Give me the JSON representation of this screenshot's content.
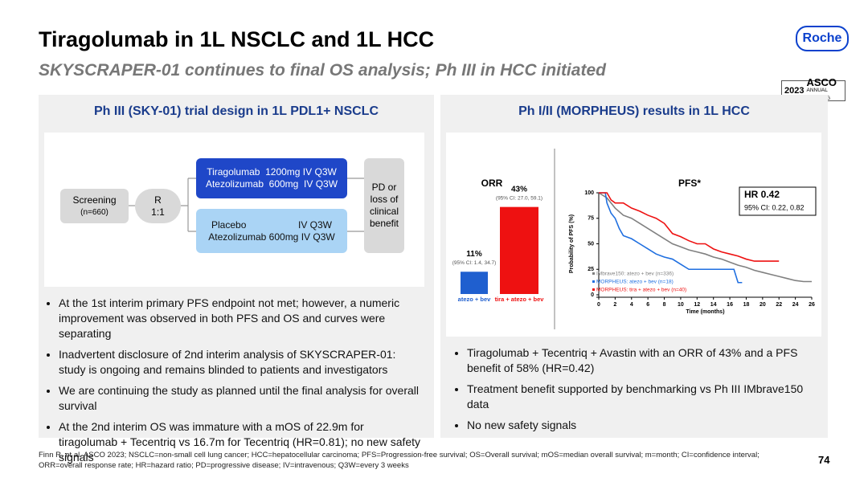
{
  "header": {
    "title": "Tiragolumab in 1L NSCLC and 1L HCC",
    "subtitle": "SKYSCRAPER-01 continues to final OS analysis; Ph III in HCC initiated",
    "logo": "Roche",
    "badge": {
      "year": "2023",
      "name": "ASCO",
      "sub": "ANNUAL MEETING"
    }
  },
  "left": {
    "heading": "Ph III (SKY-01) trial design in 1L PDL1+ NSCLC",
    "diagram": {
      "screening": [
        "Screening",
        "(n=660)"
      ],
      "randomization": [
        "R",
        "1:1"
      ],
      "arm1": [
        "Tiragolumab  1200mg IV Q3W",
        "Atezolizumab  600mg  IV Q3W"
      ],
      "arm2": [
        "Placebo",
        "IV Q3W",
        "Atezolizumab 600mg IV Q3W"
      ],
      "endpoint": "PD or loss of clinical benefit"
    },
    "bullets": [
      "At the 1st interim primary PFS endpoint not met; however, a numeric improvement was observed in both PFS and OS and curves were separating",
      "Inadvertent disclosure of 2nd interim analysis of SKYSCRAPER-01: study is ongoing and remains blinded to patients and investigators",
      "We are continuing the study as planned until the final analysis for overall survival",
      "At the 2nd interim OS was immature with a mOS of 22.9m for tiragolumab + Tecentriq vs 16.7m for Tecentriq (HR=0.81); no new safety signals"
    ]
  },
  "right": {
    "heading": "Ph I/II (MORPHEUS) results in 1L HCC",
    "orr": {
      "type": "bar",
      "title": "ORR",
      "categories": [
        "atezo + bev",
        "tira + atezo + bev"
      ],
      "values": [
        11,
        43
      ],
      "value_labels": [
        "11%",
        "43%"
      ],
      "ci_labels": [
        "(95% CI: 1.4, 34.7)",
        "(95% CI: 27.0, 59.1)"
      ],
      "colors": [
        "#1f5fcf",
        "#ee1111"
      ]
    },
    "pfs": {
      "type": "line",
      "title": "PFS*",
      "hr": "HR 0.42",
      "hr_ci": "95% CI: 0.22, 0.82",
      "xlabel": "Time (months)",
      "ylabel": "Probability of PFS (%)",
      "xlim": [
        0,
        26
      ],
      "xticks": [
        0,
        2,
        4,
        6,
        8,
        10,
        12,
        14,
        16,
        18,
        20,
        22,
        24,
        26
      ],
      "ylim": [
        0,
        100
      ],
      "yticks": [
        0,
        25,
        50,
        75,
        100
      ],
      "series": [
        {
          "name": "IMbrave150: atezo + bev (n=336)",
          "color": "#808080",
          "x": [
            0,
            1,
            2,
            3,
            4,
            5,
            6,
            7,
            8,
            9,
            10,
            11,
            12,
            13,
            14,
            15,
            16,
            17,
            18,
            19,
            20,
            21,
            22,
            23,
            24,
            25,
            26
          ],
          "values": [
            100,
            95,
            85,
            78,
            75,
            70,
            65,
            60,
            55,
            50,
            47,
            44,
            42,
            40,
            37,
            35,
            32,
            29,
            27,
            24,
            22,
            20,
            18,
            16,
            14,
            13,
            13
          ]
        },
        {
          "name": "MORPHEUS: atezo + bev (n=18)",
          "color": "#1f6fe0",
          "x": [
            0,
            0.8,
            1,
            1.5,
            2,
            2.5,
            3,
            4,
            5,
            6,
            7,
            8,
            9,
            10,
            11,
            12,
            16.5,
            17,
            17.5
          ],
          "values": [
            100,
            100,
            90,
            80,
            75,
            65,
            58,
            55,
            50,
            45,
            40,
            37,
            35,
            30,
            25,
            25,
            25,
            12,
            12
          ]
        },
        {
          "name": "MORPHEUS: tira + atezo + bev (n=40)",
          "color": "#ee1111",
          "x": [
            0,
            1,
            1.5,
            2,
            3,
            4,
            5,
            6,
            7,
            8,
            9,
            10,
            11,
            12,
            13,
            14,
            15,
            16,
            17,
            18,
            19,
            20,
            21,
            22
          ],
          "values": [
            100,
            100,
            93,
            90,
            90,
            85,
            82,
            78,
            75,
            70,
            60,
            57,
            53,
            50,
            50,
            45,
            42,
            40,
            38,
            35,
            33,
            33,
            33,
            33
          ]
        }
      ]
    },
    "bullets": [
      "Tiragolumab + Tecentriq + Avastin with an ORR of 43% and a PFS benefit of 58% (HR=0.42)",
      "Treatment benefit supported by benchmarking vs Ph III IMbrave150 data",
      "No new safety signals"
    ]
  },
  "footer": {
    "note": "Finn R, et al. ASCO 2023; NSCLC=non-small cell lung cancer; HCC=hepatocellular carcinoma; PFS=Progression-free survival; OS=Overall survival; mOS=median overall survival; m=month; CI=confidence interval; ORR=overall response rate; HR=hazard ratio; PD=progressive disease; IV=intravenous; Q3W=every 3 weeks",
    "page": "74"
  }
}
